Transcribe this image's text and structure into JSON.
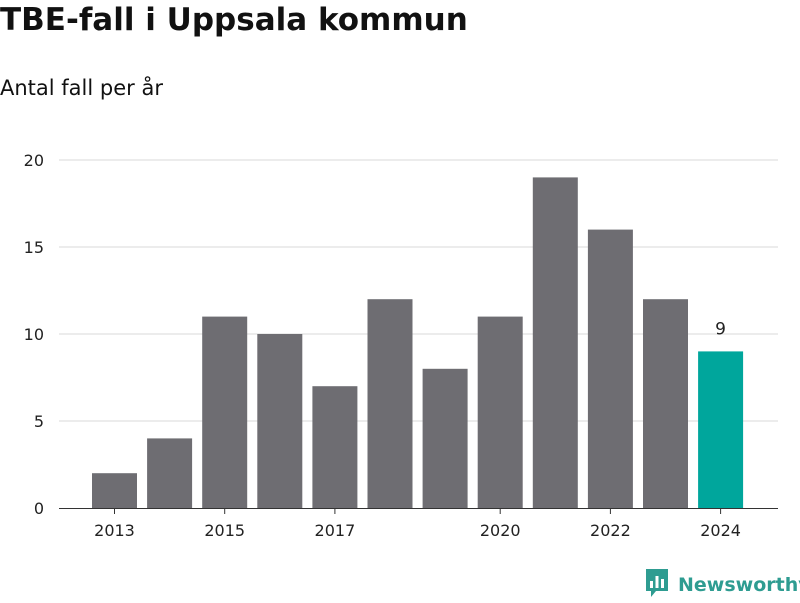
{
  "title": "TBE-fall i Uppsala kommun",
  "subtitle": "Antal fall per år",
  "brand": "Newsworthy",
  "colors": {
    "bar": "#6e6d72",
    "highlight": "#00a69c",
    "grid": "#d9d9d9",
    "axis": "#333333",
    "brand": "#2e9c91"
  },
  "chart_data": {
    "type": "bar",
    "title": "TBE-fall i Uppsala kommun",
    "subtitle": "Antal fall per år",
    "categories": [
      2013,
      2014,
      2015,
      2016,
      2017,
      2018,
      2019,
      2020,
      2021,
      2022,
      2023,
      2024
    ],
    "values": [
      2,
      4,
      11,
      10,
      7,
      12,
      8,
      11,
      19,
      16,
      12,
      9
    ],
    "x_tick_labels": [
      "2013",
      "2015",
      "2017",
      "2020",
      "2022",
      "2024"
    ],
    "y_ticks": [
      0,
      5,
      10,
      15,
      20
    ],
    "ylim": [
      0,
      20
    ],
    "grid": true,
    "highlight_category": 2024,
    "highlight_label": "9"
  }
}
